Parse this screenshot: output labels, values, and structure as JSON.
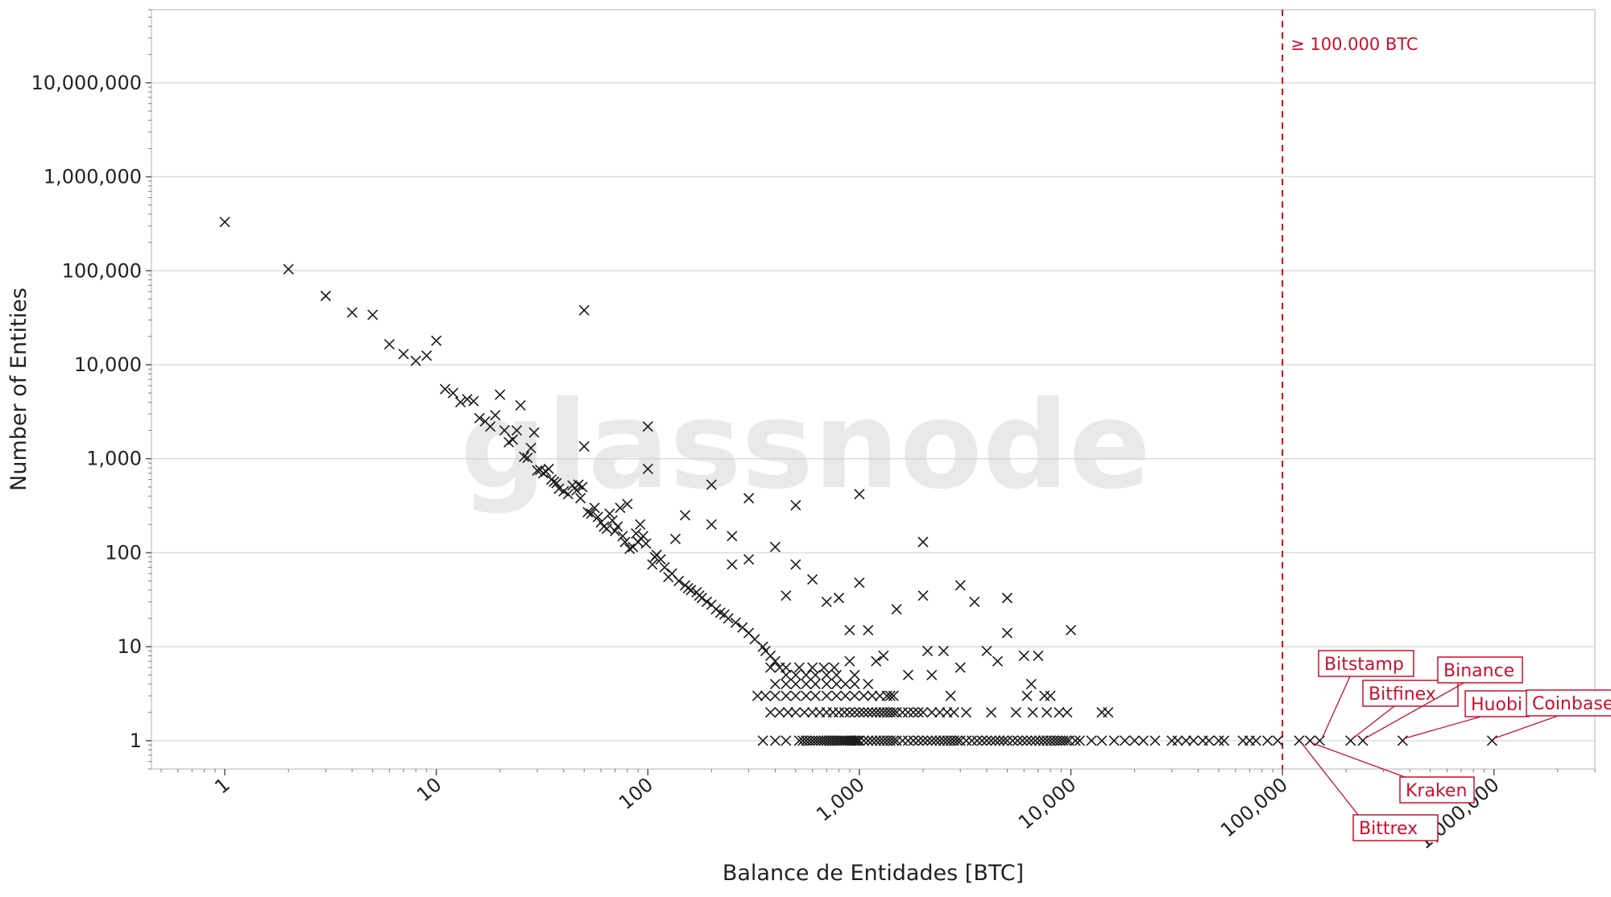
{
  "watermark": "glassnode",
  "colors": {
    "marker": "#1a1a1a",
    "grid": "#dddddd",
    "threshold": "#d0021b",
    "annotation": "#c8102e"
  },
  "chart_data": {
    "type": "scatter",
    "xscale": "log",
    "yscale": "log",
    "xlabel": "Balance de Entidades [BTC]",
    "ylabel": "Number of Entities",
    "xlim": [
      0.45,
      3000000
    ],
    "ylim": [
      0.5,
      60000000
    ],
    "grid": "horizontal",
    "marker": "x",
    "xticks": [
      {
        "value": 1,
        "label": "1"
      },
      {
        "value": 10,
        "label": "10"
      },
      {
        "value": 100,
        "label": "100"
      },
      {
        "value": 1000,
        "label": "1,000"
      },
      {
        "value": 10000,
        "label": "10,000"
      },
      {
        "value": 100000,
        "label": "100,000"
      },
      {
        "value": 1000000,
        "label": "1,000,000"
      }
    ],
    "yticks": [
      {
        "value": 1,
        "label": "1"
      },
      {
        "value": 10,
        "label": "10"
      },
      {
        "value": 100,
        "label": "100"
      },
      {
        "value": 1000,
        "label": "1,000"
      },
      {
        "value": 10000,
        "label": "10,000"
      },
      {
        "value": 100000,
        "label": "100,000"
      },
      {
        "value": 1000000,
        "label": "1,000,000"
      },
      {
        "value": 10000000,
        "label": "10,000,000"
      }
    ],
    "threshold": {
      "x": 100000,
      "label": "≥ 100.000 BTC"
    },
    "points": [
      [
        1,
        330000
      ],
      [
        2,
        104000
      ],
      [
        3,
        54000
      ],
      [
        4,
        36000
      ],
      [
        5,
        34000
      ],
      [
        6,
        16500
      ],
      [
        7,
        13000
      ],
      [
        8,
        11000
      ],
      [
        9,
        12500
      ],
      [
        10,
        18000
      ],
      [
        11,
        5500
      ],
      [
        12,
        5000
      ],
      [
        13,
        4000
      ],
      [
        14,
        4300
      ],
      [
        15,
        4100
      ],
      [
        16,
        2700
      ],
      [
        17,
        2500
      ],
      [
        18,
        2200
      ],
      [
        19,
        2900
      ],
      [
        20,
        4800
      ],
      [
        21,
        2000
      ],
      [
        22,
        1500
      ],
      [
        23,
        1600
      ],
      [
        24,
        2000
      ],
      [
        25,
        3700
      ],
      [
        26,
        1050
      ],
      [
        27,
        1020
      ],
      [
        28,
        1300
      ],
      [
        29,
        1900
      ],
      [
        30,
        750
      ],
      [
        31,
        760
      ],
      [
        32,
        700
      ],
      [
        33,
        730
      ],
      [
        34,
        780
      ],
      [
        35,
        600
      ],
      [
        36,
        570
      ],
      [
        37,
        550
      ],
      [
        38,
        480
      ],
      [
        40,
        450
      ],
      [
        42,
        420
      ],
      [
        44,
        520
      ],
      [
        46,
        460
      ],
      [
        47,
        530
      ],
      [
        48,
        380
      ],
      [
        49,
        500
      ],
      [
        50,
        1350
      ],
      [
        50,
        38000
      ],
      [
        52,
        270
      ],
      [
        54,
        260
      ],
      [
        56,
        300
      ],
      [
        58,
        240
      ],
      [
        60,
        210
      ],
      [
        62,
        190
      ],
      [
        64,
        180
      ],
      [
        66,
        260
      ],
      [
        68,
        220
      ],
      [
        70,
        170
      ],
      [
        72,
        190
      ],
      [
        74,
        300
      ],
      [
        76,
        150
      ],
      [
        78,
        130
      ],
      [
        80,
        330
      ],
      [
        82,
        110
      ],
      [
        85,
        115
      ],
      [
        88,
        160
      ],
      [
        90,
        130
      ],
      [
        92,
        200
      ],
      [
        95,
        150
      ],
      [
        98,
        125
      ],
      [
        100,
        2200
      ],
      [
        100,
        780
      ],
      [
        105,
        75
      ],
      [
        108,
        90
      ],
      [
        110,
        95
      ],
      [
        115,
        85
      ],
      [
        120,
        70
      ],
      [
        125,
        55
      ],
      [
        130,
        60
      ],
      [
        135,
        140
      ],
      [
        140,
        50
      ],
      [
        150,
        45
      ],
      [
        150,
        250
      ],
      [
        155,
        42
      ],
      [
        160,
        40
      ],
      [
        170,
        38
      ],
      [
        175,
        35
      ],
      [
        180,
        33
      ],
      [
        190,
        30
      ],
      [
        200,
        28
      ],
      [
        200,
        530
      ],
      [
        200,
        200
      ],
      [
        210,
        25
      ],
      [
        220,
        23
      ],
      [
        230,
        22
      ],
      [
        240,
        20
      ],
      [
        250,
        150
      ],
      [
        250,
        75
      ],
      [
        260,
        18
      ],
      [
        280,
        16
      ],
      [
        300,
        380
      ],
      [
        300,
        14
      ],
      [
        300,
        85
      ],
      [
        320,
        12
      ],
      [
        350,
        10
      ],
      [
        360,
        9
      ],
      [
        380,
        8
      ],
      [
        400,
        7
      ],
      [
        400,
        115
      ],
      [
        420,
        6
      ],
      [
        450,
        35
      ],
      [
        500,
        320
      ],
      [
        500,
        75
      ],
      [
        600,
        52
      ],
      [
        700,
        30
      ],
      [
        800,
        33
      ],
      [
        900,
        15
      ],
      [
        1000,
        420
      ],
      [
        1000,
        48
      ],
      [
        1100,
        15
      ],
      [
        1500,
        25
      ],
      [
        2000,
        130
      ],
      [
        2000,
        35
      ],
      [
        2100,
        9
      ],
      [
        2500,
        9
      ],
      [
        3000,
        45
      ],
      [
        3000,
        6
      ],
      [
        3500,
        30
      ],
      [
        4000,
        9
      ],
      [
        5000,
        33
      ],
      [
        5000,
        14
      ],
      [
        6000,
        8
      ],
      [
        6500,
        4
      ],
      [
        7000,
        8
      ],
      [
        8000,
        3
      ],
      [
        10000,
        15
      ],
      [
        1200,
        7
      ],
      [
        1300,
        8
      ],
      [
        1700,
        5
      ],
      [
        2200,
        5
      ],
      [
        2700,
        3
      ],
      [
        4500,
        7
      ],
      [
        6200,
        3
      ],
      [
        7500,
        3
      ],
      [
        900,
        7
      ],
      [
        950,
        5
      ],
      [
        1100,
        4
      ],
      [
        1400,
        3
      ],
      [
        1600,
        2
      ],
      [
        1900,
        2
      ],
      [
        2400,
        2
      ],
      [
        2800,
        2
      ],
      [
        3200,
        2
      ],
      [
        4200,
        2
      ],
      [
        5500,
        2
      ],
      [
        6600,
        2
      ],
      [
        7700,
        2
      ],
      [
        8800,
        2
      ],
      [
        9600,
        2
      ],
      [
        14000,
        2
      ],
      [
        15000,
        2
      ],
      [
        330,
        3
      ],
      [
        360,
        3
      ],
      [
        400,
        3
      ],
      [
        450,
        3
      ],
      [
        500,
        3
      ],
      [
        560,
        3
      ],
      [
        620,
        3
      ],
      [
        700,
        3
      ],
      [
        780,
        3
      ],
      [
        860,
        3
      ],
      [
        950,
        3
      ],
      [
        1050,
        3
      ],
      [
        1150,
        3
      ],
      [
        1250,
        3
      ],
      [
        1350,
        3
      ],
      [
        1450,
        3
      ],
      [
        400,
        4
      ],
      [
        450,
        4
      ],
      [
        500,
        4
      ],
      [
        560,
        4
      ],
      [
        620,
        4
      ],
      [
        700,
        4
      ],
      [
        780,
        4
      ],
      [
        860,
        4
      ],
      [
        950,
        4
      ],
      [
        450,
        5
      ],
      [
        500,
        5
      ],
      [
        560,
        5
      ],
      [
        620,
        5
      ],
      [
        700,
        5
      ],
      [
        780,
        5
      ],
      [
        380,
        6
      ],
      [
        450,
        6
      ],
      [
        520,
        6
      ],
      [
        600,
        6
      ],
      [
        680,
        6
      ],
      [
        760,
        6
      ],
      [
        380,
        2
      ],
      [
        420,
        2
      ],
      [
        460,
        2
      ],
      [
        500,
        2
      ],
      [
        550,
        2
      ],
      [
        600,
        2
      ],
      [
        650,
        2
      ],
      [
        700,
        2
      ],
      [
        750,
        2
      ],
      [
        800,
        2
      ],
      [
        850,
        2
      ],
      [
        900,
        2
      ],
      [
        950,
        2
      ],
      [
        1000,
        2
      ],
      [
        1050,
        2
      ],
      [
        1100,
        2
      ],
      [
        1150,
        2
      ],
      [
        1200,
        2
      ],
      [
        1250,
        2
      ],
      [
        1300,
        2
      ],
      [
        1350,
        2
      ],
      [
        1400,
        2
      ],
      [
        1450,
        2
      ],
      [
        1500,
        2
      ],
      [
        1700,
        2
      ],
      [
        1800,
        2
      ],
      [
        2000,
        2
      ],
      [
        2200,
        2
      ],
      [
        2600,
        2
      ],
      [
        350,
        1
      ],
      [
        400,
        1
      ],
      [
        450,
        1
      ],
      [
        520,
        1
      ],
      [
        540,
        1
      ],
      [
        560,
        1
      ],
      [
        580,
        1
      ],
      [
        600,
        1
      ],
      [
        620,
        1
      ],
      [
        640,
        1
      ],
      [
        660,
        1
      ],
      [
        680,
        1
      ],
      [
        700,
        1
      ],
      [
        720,
        1
      ],
      [
        740,
        1
      ],
      [
        760,
        1
      ],
      [
        780,
        1
      ],
      [
        800,
        1
      ],
      [
        820,
        1
      ],
      [
        840,
        1
      ],
      [
        860,
        1
      ],
      [
        880,
        1
      ],
      [
        900,
        1
      ],
      [
        920,
        1
      ],
      [
        940,
        1
      ],
      [
        960,
        1
      ],
      [
        980,
        1
      ],
      [
        1000,
        1
      ],
      [
        1050,
        1
      ],
      [
        1100,
        1
      ],
      [
        1150,
        1
      ],
      [
        1200,
        1
      ],
      [
        1250,
        1
      ],
      [
        1300,
        1
      ],
      [
        1350,
        1
      ],
      [
        1400,
        1
      ],
      [
        1450,
        1
      ],
      [
        1500,
        1
      ],
      [
        1600,
        1
      ],
      [
        1700,
        1
      ],
      [
        1800,
        1
      ],
      [
        1900,
        1
      ],
      [
        2000,
        1
      ],
      [
        2100,
        1
      ],
      [
        2200,
        1
      ],
      [
        2300,
        1
      ],
      [
        2400,
        1
      ],
      [
        2500,
        1
      ],
      [
        2600,
        1
      ],
      [
        2700,
        1
      ],
      [
        2800,
        1
      ],
      [
        2900,
        1
      ],
      [
        3000,
        1
      ],
      [
        3200,
        1
      ],
      [
        3400,
        1
      ],
      [
        3600,
        1
      ],
      [
        3800,
        1
      ],
      [
        4000,
        1
      ],
      [
        4200,
        1
      ],
      [
        4400,
        1
      ],
      [
        4600,
        1
      ],
      [
        4800,
        1
      ],
      [
        5000,
        1
      ],
      [
        5300,
        1
      ],
      [
        5600,
        1
      ],
      [
        5900,
        1
      ],
      [
        6200,
        1
      ],
      [
        6500,
        1
      ],
      [
        6800,
        1
      ],
      [
        7100,
        1
      ],
      [
        7400,
        1
      ],
      [
        7700,
        1
      ],
      [
        8000,
        1
      ],
      [
        8300,
        1
      ],
      [
        8600,
        1
      ],
      [
        8900,
        1
      ],
      [
        9200,
        1
      ],
      [
        9500,
        1
      ],
      [
        9800,
        1
      ],
      [
        10500,
        1
      ],
      [
        11000,
        1
      ],
      [
        12500,
        1
      ],
      [
        14000,
        1
      ],
      [
        16000,
        1
      ],
      [
        18000,
        1
      ],
      [
        20000,
        1
      ],
      [
        22000,
        1
      ],
      [
        25000,
        1
      ],
      [
        30000,
        1
      ],
      [
        32000,
        1
      ],
      [
        35000,
        1
      ],
      [
        38000,
        1
      ],
      [
        42000,
        1
      ],
      [
        45000,
        1
      ],
      [
        50000,
        1
      ],
      [
        53000,
        1
      ],
      [
        65000,
        1
      ],
      [
        70000,
        1
      ],
      [
        75000,
        1
      ],
      [
        85000,
        1
      ],
      [
        95000,
        1
      ]
    ],
    "annotations": [
      {
        "label": "Bitstamp",
        "x": 150000,
        "y": 1
      },
      {
        "label": "Bitfinex",
        "x": 210000,
        "y": 1
      },
      {
        "label": "Binance",
        "x": 240000,
        "y": 1
      },
      {
        "label": "Huobi",
        "x": 370000,
        "y": 1
      },
      {
        "label": "Coinbase",
        "x": 980000,
        "y": 1
      },
      {
        "label": "Kraken",
        "x": 135000,
        "y": 1
      },
      {
        "label": "Bittrex",
        "x": 120000,
        "y": 1
      }
    ]
  }
}
